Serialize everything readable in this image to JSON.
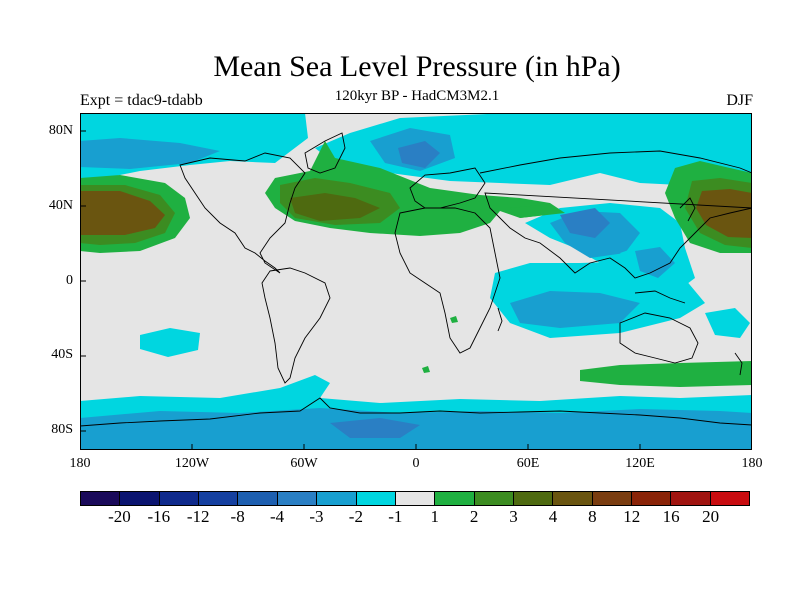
{
  "header": {
    "title": "Mean Sea Level Pressure (in hPa)",
    "subtitle": "120kyr BP - HadCM3M2.1",
    "left_label": "Expt = tdac9-tdabb",
    "right_label": "DJF"
  },
  "axes": {
    "y_ticks": [
      "80N",
      "40N",
      "0",
      "40S",
      "80S"
    ],
    "x_ticks": [
      "180",
      "120W",
      "60W",
      "0",
      "60E",
      "120E",
      "180"
    ]
  },
  "colorbar": {
    "colors": [
      "#1a0a5a",
      "#0b1470",
      "#0f2a8c",
      "#1540a0",
      "#1d5fb0",
      "#2a7fc4",
      "#189fd0",
      "#00d6e0",
      "#e5e5e5",
      "#1fb041",
      "#3c8c21",
      "#4e6a10",
      "#6a5510",
      "#7a3d10",
      "#8a2408",
      "#a01410",
      "#c80c10"
    ],
    "labels": [
      "-20",
      "-16",
      "-12",
      "-8",
      "-4",
      "-3",
      "-2",
      "-1",
      "1",
      "2",
      "3",
      "4",
      "8",
      "12",
      "16",
      "20"
    ]
  },
  "colors": {
    "background": "#e5e5e5",
    "neg_1": "#00d6e0",
    "neg_2": "#189fd0",
    "neg_3": "#2a7fc4",
    "pos_1": "#1fb041",
    "pos_2": "#3c8c21",
    "pos_3": "#4e6a10",
    "pos_4": "#6a5510",
    "pos_5": "#7a3d10"
  }
}
